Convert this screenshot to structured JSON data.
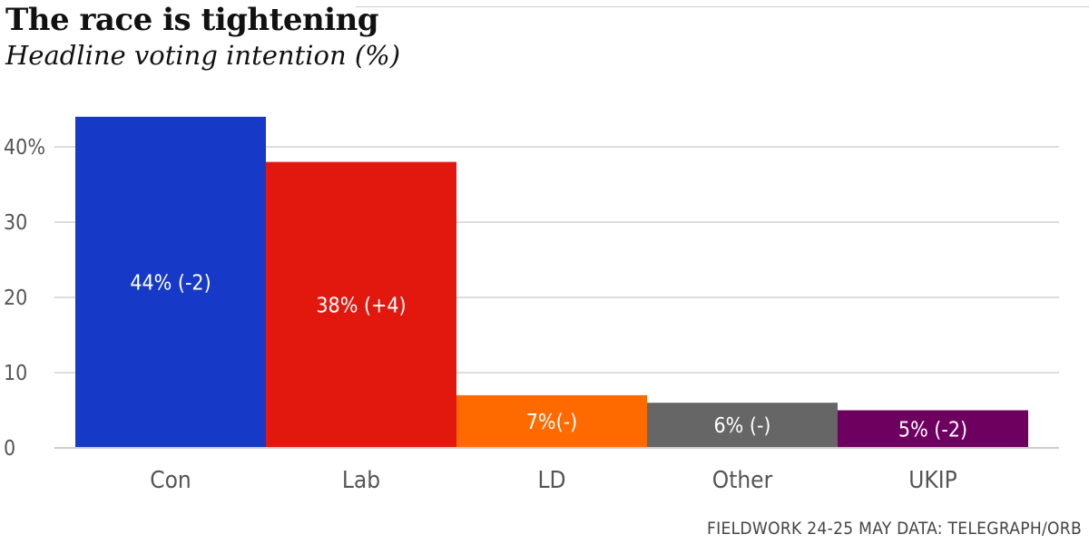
{
  "chart_data": {
    "type": "bar",
    "title": "The race is tightening",
    "subtitle": "Headline voting intention (%)",
    "categories": [
      "Con",
      "Lab",
      "LD",
      "Other",
      "UKIP"
    ],
    "values": [
      44,
      38,
      7,
      6,
      5
    ],
    "data_labels": [
      "44% (-2)",
      "38% (+4)",
      "7%(-)",
      "6% (-)",
      "5% (-2)"
    ],
    "colors": [
      "#1639c8",
      "#e2180e",
      "#ff6a00",
      "#666666",
      "#6e0060"
    ],
    "y_ticks": [
      {
        "value": 0,
        "label": "0"
      },
      {
        "value": 10,
        "label": "10"
      },
      {
        "value": 20,
        "label": "20"
      },
      {
        "value": 30,
        "label": "30"
      },
      {
        "value": 40,
        "label": "40%"
      }
    ],
    "ylim": [
      0,
      45
    ],
    "grid": true,
    "source": "FIELDWORK 24-25 MAY DATA: TELEGRAPH/ORB"
  }
}
